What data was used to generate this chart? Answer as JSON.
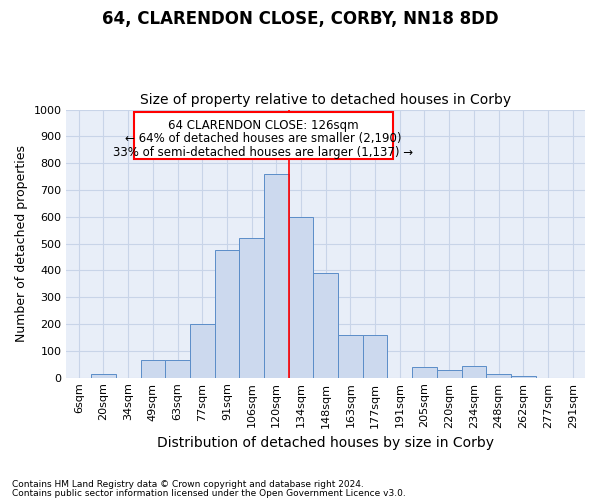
{
  "title": "64, CLARENDON CLOSE, CORBY, NN18 8DD",
  "subtitle": "Size of property relative to detached houses in Corby",
  "xlabel": "Distribution of detached houses by size in Corby",
  "ylabel": "Number of detached properties",
  "footnote1": "Contains HM Land Registry data © Crown copyright and database right 2024.",
  "footnote2": "Contains public sector information licensed under the Open Government Licence v3.0.",
  "annotation_line1": "64 CLARENDON CLOSE: 126sqm",
  "annotation_line2": "← 64% of detached houses are smaller (2,190)",
  "annotation_line3": "33% of semi-detached houses are larger (1,137) →",
  "bar_labels": [
    "6sqm",
    "20sqm",
    "34sqm",
    "49sqm",
    "63sqm",
    "77sqm",
    "91sqm",
    "106sqm",
    "120sqm",
    "134sqm",
    "148sqm",
    "163sqm",
    "177sqm",
    "191sqm",
    "205sqm",
    "220sqm",
    "234sqm",
    "248sqm",
    "262sqm",
    "277sqm",
    "291sqm"
  ],
  "bar_values": [
    0,
    12,
    0,
    65,
    65,
    200,
    475,
    520,
    760,
    598,
    390,
    160,
    160,
    0,
    40,
    28,
    42,
    12,
    7,
    0,
    0
  ],
  "bar_color": "#ccd9ee",
  "bar_edge_color": "#5b8dc8",
  "vline_x_idx": 8,
  "vline_color": "red",
  "ylim": [
    0,
    1000
  ],
  "yticks": [
    0,
    100,
    200,
    300,
    400,
    500,
    600,
    700,
    800,
    900,
    1000
  ],
  "grid_color": "#c8d4e8",
  "bg_color": "#e8eef8",
  "title_fontsize": 12,
  "subtitle_fontsize": 10,
  "xlabel_fontsize": 10,
  "ylabel_fontsize": 9,
  "tick_fontsize": 8
}
